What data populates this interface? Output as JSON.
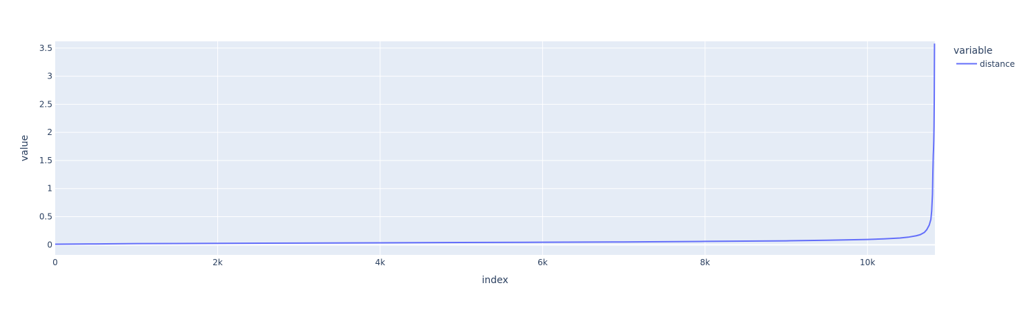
{
  "chart_data": {
    "type": "line",
    "xlabel": "index",
    "ylabel": "value",
    "xlim": [
      0,
      10830
    ],
    "ylim": [
      -0.18,
      3.62
    ],
    "x_ticks": [
      {
        "value": 0,
        "label": "0"
      },
      {
        "value": 2000,
        "label": "2k"
      },
      {
        "value": 4000,
        "label": "4k"
      },
      {
        "value": 6000,
        "label": "6k"
      },
      {
        "value": 8000,
        "label": "8k"
      },
      {
        "value": 10000,
        "label": "10k"
      }
    ],
    "y_ticks": [
      {
        "value": 0,
        "label": "0"
      },
      {
        "value": 0.5,
        "label": "0.5"
      },
      {
        "value": 1,
        "label": "1"
      },
      {
        "value": 1.5,
        "label": "1.5"
      },
      {
        "value": 2,
        "label": "2"
      },
      {
        "value": 2.5,
        "label": "2.5"
      },
      {
        "value": 3,
        "label": "3"
      },
      {
        "value": 3.5,
        "label": "3.5"
      }
    ],
    "legend": {
      "title": "variable",
      "placement": "right"
    },
    "grid": true,
    "colors": {
      "plot_background": "#e5ecf6",
      "grid": "#ffffff",
      "text": "#2a3f5f",
      "series": "#636efa"
    },
    "series": [
      {
        "name": "distance",
        "x": [
          0,
          500,
          1000,
          2000,
          3000,
          4000,
          5000,
          6000,
          7000,
          8000,
          9000,
          9500,
          10000,
          10200,
          10400,
          10500,
          10600,
          10650,
          10700,
          10730,
          10760,
          10780,
          10790,
          10800,
          10805,
          10810,
          10813,
          10816,
          10819,
          10822,
          10825
        ],
        "y": [
          0.01,
          0.015,
          0.02,
          0.025,
          0.03,
          0.035,
          0.04,
          0.045,
          0.05,
          0.06,
          0.07,
          0.08,
          0.095,
          0.105,
          0.12,
          0.135,
          0.16,
          0.18,
          0.22,
          0.27,
          0.35,
          0.45,
          0.6,
          0.9,
          1.3,
          1.6,
          1.7,
          1.85,
          2.1,
          2.6,
          3.58
        ]
      }
    ]
  }
}
